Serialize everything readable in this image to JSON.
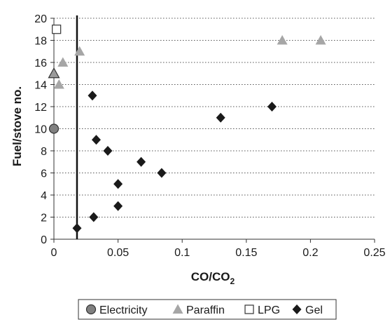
{
  "chart_data": {
    "type": "scatter",
    "xlabel": "CO/CO",
    "xlabel_sub": "2",
    "ylabel": "Fuel/stove no.",
    "xlim": [
      0,
      0.25
    ],
    "ylim": [
      0,
      20
    ],
    "x_ticks": [
      "0",
      "0.05",
      "0.1",
      "0.15",
      "0.2",
      "0.25"
    ],
    "y_ticks": [
      "0",
      "2",
      "4",
      "6",
      "8",
      "10",
      "12",
      "14",
      "16",
      "18",
      "20"
    ],
    "grid": "horizontal dotted",
    "legend_position": "bottom",
    "reference_line_x": 0.018,
    "series": [
      {
        "name": "Electricity",
        "marker": "circle",
        "color": "#808080",
        "points": [
          [
            0.0,
            10
          ]
        ]
      },
      {
        "name": "Paraffin",
        "marker": "triangle",
        "color": "#a6a6a6",
        "points": [
          [
            0.0,
            15
          ],
          [
            0.004,
            14
          ],
          [
            0.007,
            16
          ],
          [
            0.02,
            17
          ],
          [
            0.178,
            18
          ],
          [
            0.208,
            18
          ]
        ]
      },
      {
        "name": "LPG",
        "marker": "square",
        "color": "#ffffff",
        "points": [
          [
            0.002,
            19
          ]
        ]
      },
      {
        "name": "Gel",
        "marker": "diamond",
        "color": "#1a1a1a",
        "points": [
          [
            0.018,
            1
          ],
          [
            0.031,
            2
          ],
          [
            0.05,
            3
          ],
          [
            0.05,
            5
          ],
          [
            0.084,
            6
          ],
          [
            0.068,
            7
          ],
          [
            0.042,
            8
          ],
          [
            0.033,
            9
          ],
          [
            0.13,
            11
          ],
          [
            0.17,
            12
          ],
          [
            0.03,
            13
          ]
        ]
      }
    ]
  }
}
